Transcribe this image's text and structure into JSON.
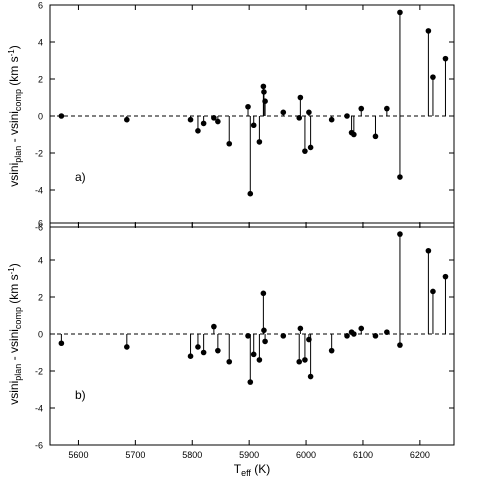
{
  "chart_data": [
    {
      "type": "scatter",
      "panel_label": "a)",
      "ylabel_main": "vsini",
      "ylabel_sub1": "plan",
      "ylabel_mid": " - vsini",
      "ylabel_sub2": "comp",
      "ylabel_units_open": "(km s",
      "ylabel_units_exp": "-1",
      "ylabel_units_close": ")",
      "ylim": [
        -6,
        6
      ],
      "yticks": [
        -6,
        -4,
        -2,
        0,
        2,
        4,
        6
      ],
      "ytick_labels": [
        "-6",
        "-4",
        "-2",
        "0",
        "2",
        "4",
        "6"
      ],
      "xlim": [
        5550,
        6260
      ],
      "xticks": [
        5600,
        5700,
        5800,
        5900,
        6000,
        6100,
        6200
      ],
      "reference_line": 0,
      "points": [
        {
          "x": 5570,
          "y": 0.0
        },
        {
          "x": 5685,
          "y": -0.2
        },
        {
          "x": 5797,
          "y": -0.2
        },
        {
          "x": 5810,
          "y": -0.8
        },
        {
          "x": 5820,
          "y": -0.4
        },
        {
          "x": 5838,
          "y": -0.1
        },
        {
          "x": 5845,
          "y": -0.3
        },
        {
          "x": 5865,
          "y": -1.5
        },
        {
          "x": 5898,
          "y": 0.5
        },
        {
          "x": 5902,
          "y": -4.2
        },
        {
          "x": 5908,
          "y": -0.5
        },
        {
          "x": 5918,
          "y": -1.4
        },
        {
          "x": 5925,
          "y": 1.6
        },
        {
          "x": 5926,
          "y": 1.3
        },
        {
          "x": 5928,
          "y": 0.8
        },
        {
          "x": 5960,
          "y": 0.2
        },
        {
          "x": 5988,
          "y": -0.1
        },
        {
          "x": 5990,
          "y": 1.0
        },
        {
          "x": 5998,
          "y": -1.9
        },
        {
          "x": 6005,
          "y": 0.2
        },
        {
          "x": 6008,
          "y": -1.7
        },
        {
          "x": 6045,
          "y": -0.2
        },
        {
          "x": 6072,
          "y": 0.0
        },
        {
          "x": 6080,
          "y": -0.9
        },
        {
          "x": 6084,
          "y": -1.0
        },
        {
          "x": 6097,
          "y": 0.4
        },
        {
          "x": 6122,
          "y": -1.1
        },
        {
          "x": 6142,
          "y": 0.4
        },
        {
          "x": 6165,
          "y": 5.6
        },
        {
          "x": 6165,
          "y": -3.3
        },
        {
          "x": 6215,
          "y": 4.6
        },
        {
          "x": 6223,
          "y": 2.1
        },
        {
          "x": 6245,
          "y": 3.1
        }
      ]
    },
    {
      "type": "scatter",
      "panel_label": "b)",
      "ylabel_main": "vsini",
      "ylabel_sub1": "plan",
      "ylabel_mid": " - vsini",
      "ylabel_sub2": "comp",
      "ylabel_units_open": "(km s",
      "ylabel_units_exp": "-1",
      "ylabel_units_close": ")",
      "ylim": [
        -6,
        6
      ],
      "yticks": [
        -6,
        -4,
        -2,
        0,
        2,
        4,
        6
      ],
      "ytick_labels": [
        "-6",
        "-4",
        "-2",
        "0",
        "2",
        "4",
        "6"
      ],
      "xlim": [
        5550,
        6260
      ],
      "xticks": [
        5600,
        5700,
        5800,
        5900,
        6000,
        6100,
        6200
      ],
      "xtick_labels": [
        "5600",
        "5700",
        "5800",
        "5900",
        "6000",
        "6100",
        "6200"
      ],
      "xlabel_main": "T",
      "xlabel_sub": "eff",
      "xlabel_units": " (K)",
      "reference_line": 0,
      "points": [
        {
          "x": 5570,
          "y": -0.5
        },
        {
          "x": 5685,
          "y": -0.7
        },
        {
          "x": 5797,
          "y": -1.2
        },
        {
          "x": 5810,
          "y": -0.7
        },
        {
          "x": 5820,
          "y": -1.0
        },
        {
          "x": 5838,
          "y": 0.4
        },
        {
          "x": 5845,
          "y": -0.9
        },
        {
          "x": 5865,
          "y": -1.5
        },
        {
          "x": 5898,
          "y": -0.1
        },
        {
          "x": 5902,
          "y": -2.6
        },
        {
          "x": 5908,
          "y": -1.1
        },
        {
          "x": 5918,
          "y": -1.4
        },
        {
          "x": 5925,
          "y": 2.2
        },
        {
          "x": 5926,
          "y": 0.2
        },
        {
          "x": 5928,
          "y": -0.4
        },
        {
          "x": 5960,
          "y": -0.1
        },
        {
          "x": 5988,
          "y": -1.5
        },
        {
          "x": 5990,
          "y": 0.3
        },
        {
          "x": 5998,
          "y": -1.4
        },
        {
          "x": 6005,
          "y": -0.3
        },
        {
          "x": 6008,
          "y": -2.3
        },
        {
          "x": 6045,
          "y": -0.9
        },
        {
          "x": 6072,
          "y": -0.1
        },
        {
          "x": 6080,
          "y": 0.1
        },
        {
          "x": 6084,
          "y": 0.0
        },
        {
          "x": 6097,
          "y": 0.3
        },
        {
          "x": 6122,
          "y": -0.1
        },
        {
          "x": 6142,
          "y": 0.1
        },
        {
          "x": 6165,
          "y": 5.4
        },
        {
          "x": 6165,
          "y": -0.6
        },
        {
          "x": 6215,
          "y": 4.5
        },
        {
          "x": 6223,
          "y": 2.3
        },
        {
          "x": 6245,
          "y": 3.1
        }
      ]
    }
  ]
}
